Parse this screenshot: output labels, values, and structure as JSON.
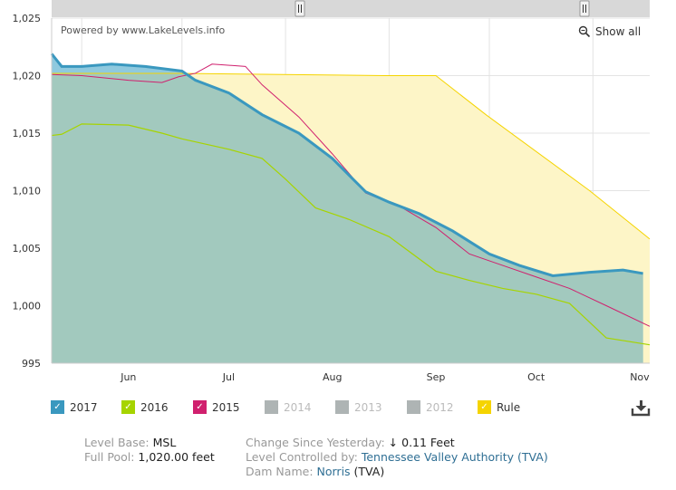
{
  "chart_data": {
    "type": "area",
    "credit": "Powered by www.LakeLevels.info",
    "show_all": "Show all",
    "y_ticks": [
      "1,025",
      "1,020",
      "1,015",
      "1,010",
      "1,005",
      "1,000",
      "995"
    ],
    "ylim": [
      995,
      1025
    ],
    "x_ticks": [
      {
        "label": "Jun",
        "x": "2017-06-15"
      },
      {
        "label": "Jul",
        "x": "2017-07-15"
      },
      {
        "label": "Aug",
        "x": "2017-08-15"
      },
      {
        "label": "Sep",
        "x": "2017-09-15"
      },
      {
        "label": "Oct",
        "x": "2017-10-15"
      },
      {
        "label": "Nov",
        "x": "2017-11-15"
      }
    ],
    "xlim": [
      "2017-05-23",
      "2017-11-18"
    ],
    "series": [
      {
        "name": "Rule",
        "color": "#f5d400",
        "fill": "#fdf5c7",
        "x": [
          "2017-05-23",
          "2017-06-30",
          "2017-07-31",
          "2017-08-31",
          "2017-09-15",
          "2017-09-30",
          "2017-10-31",
          "2017-11-18"
        ],
        "values": [
          1020.2,
          1020.2,
          1020.1,
          1020.0,
          1020.0,
          1016.6,
          1010.0,
          1005.8
        ]
      },
      {
        "name": "2017",
        "color": "#3a98bf",
        "fill": "#8fc9de",
        "x": [
          "2017-05-23",
          "2017-05-26",
          "2017-06-01",
          "2017-06-10",
          "2017-06-20",
          "2017-07-01",
          "2017-07-05",
          "2017-07-15",
          "2017-07-25",
          "2017-08-05",
          "2017-08-15",
          "2017-08-25",
          "2017-09-01",
          "2017-09-10",
          "2017-09-20",
          "2017-10-01",
          "2017-10-10",
          "2017-10-20",
          "2017-10-31",
          "2017-11-10",
          "2017-11-16"
        ],
        "values": [
          1021.9,
          1020.8,
          1020.8,
          1021.0,
          1020.8,
          1020.4,
          1019.6,
          1018.5,
          1016.6,
          1015.0,
          1012.8,
          1009.9,
          1009.0,
          1008.0,
          1006.5,
          1004.5,
          1003.5,
          1002.6,
          1002.9,
          1003.1,
          1002.8
        ]
      },
      {
        "name": "2016",
        "color": "#a6d400",
        "x": [
          "2017-05-23",
          "2017-05-26",
          "2017-06-01",
          "2017-06-15",
          "2017-06-25",
          "2017-07-01",
          "2017-07-15",
          "2017-07-25",
          "2017-08-01",
          "2017-08-10",
          "2017-08-20",
          "2017-09-01",
          "2017-09-15",
          "2017-09-25",
          "2017-10-05",
          "2017-10-15",
          "2017-10-25",
          "2017-11-05",
          "2017-11-18"
        ],
        "values": [
          1014.8,
          1014.9,
          1015.8,
          1015.7,
          1015.0,
          1014.5,
          1013.6,
          1012.8,
          1011.0,
          1008.5,
          1007.5,
          1006.0,
          1003.0,
          1002.2,
          1001.5,
          1001.0,
          1000.2,
          997.2,
          996.6
        ]
      },
      {
        "name": "2015",
        "color": "#d0206e",
        "x": [
          "2017-05-23",
          "2017-06-01",
          "2017-06-15",
          "2017-06-25",
          "2017-06-30",
          "2017-07-05",
          "2017-07-10",
          "2017-07-20",
          "2017-07-25",
          "2017-08-05",
          "2017-08-15",
          "2017-08-25",
          "2017-09-05",
          "2017-09-15",
          "2017-09-25",
          "2017-10-05",
          "2017-10-15",
          "2017-10-25",
          "2017-11-05",
          "2017-11-18"
        ],
        "values": [
          1020.1,
          1020.0,
          1019.6,
          1019.4,
          1019.9,
          1020.2,
          1021.0,
          1020.8,
          1019.2,
          1016.4,
          1013.2,
          1009.8,
          1008.5,
          1006.8,
          1004.5,
          1003.5,
          1002.5,
          1001.5,
          1000.0,
          998.2
        ]
      }
    ],
    "grid": true,
    "legend_position": "bottom-left"
  },
  "legend": [
    {
      "label": "2017",
      "color": "#3a98bf",
      "enabled": true
    },
    {
      "label": "2016",
      "color": "#a6d400",
      "enabled": true
    },
    {
      "label": "2015",
      "color": "#d0206e",
      "enabled": true
    },
    {
      "label": "2014",
      "color": "#aeb4b4",
      "enabled": false
    },
    {
      "label": "2013",
      "color": "#aeb4b4",
      "enabled": false
    },
    {
      "label": "2012",
      "color": "#aeb4b4",
      "enabled": false
    },
    {
      "label": "Rule",
      "color": "#f5d400",
      "enabled": true
    }
  ],
  "info": {
    "level_base_label": "Level Base:",
    "level_base_value": "MSL",
    "full_pool_label": "Full Pool:",
    "full_pool_value": "1,020.00 feet",
    "change_label": "Change Since Yesterday:",
    "change_value": "↓ 0.11 Feet",
    "controlled_label": "Level Controlled by:",
    "controlled_value": "Tennessee Valley Authority (TVA)",
    "dam_label": "Dam Name:",
    "dam_value": "Norris",
    "dam_suffix": "(TVA)"
  },
  "icons": {
    "download": "download-icon",
    "zoom": "magnifier-icon",
    "check": "checkmark-icon"
  }
}
